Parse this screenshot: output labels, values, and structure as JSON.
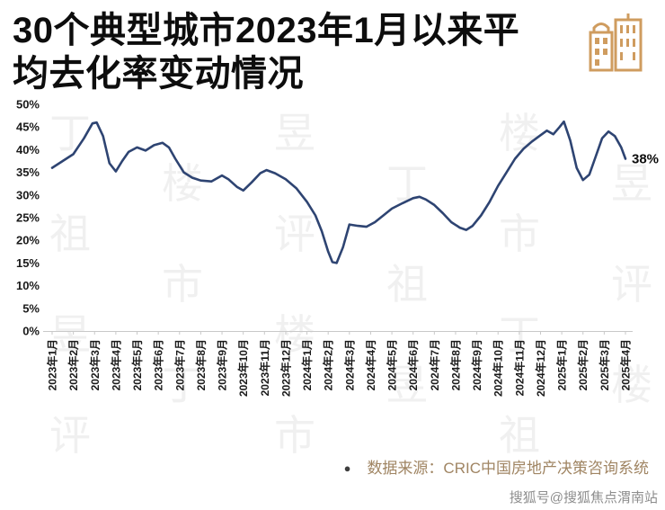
{
  "header": {
    "title_lines": [
      "30个典型城市2023年1月以来平",
      "均去化率变动情况"
    ],
    "icon_color": "#cf9c5f"
  },
  "chart_data": {
    "type": "line",
    "title": "30个典型城市2023年1月以来平均去化率变动情况",
    "ylim": [
      0,
      50
    ],
    "y_ticks": [
      "0%",
      "5%",
      "10%",
      "15%",
      "20%",
      "25%",
      "30%",
      "35%",
      "40%",
      "45%",
      "50%"
    ],
    "x_labels": [
      "2023年1月",
      "2023年2月",
      "2023年3月",
      "2023年4月",
      "2023年5月",
      "2023年6月",
      "2023年7月",
      "2023年8月",
      "2023年9月",
      "2023年10月",
      "2023年11月",
      "2023年12月",
      "2024年1月",
      "2024年2月",
      "2024年3月",
      "2024年4月",
      "2024年5月",
      "2024年6月",
      "2024年7月",
      "2024年8月",
      "2024年9月",
      "2024年10月",
      "2024年11月",
      "2024年12月",
      "2025年1月",
      "2025年2月",
      "2025年3月",
      "2025年4月"
    ],
    "grid": false,
    "legend": "none",
    "axis_color": "#c9c9c9",
    "label_color": "#1a1a1a",
    "series": [
      {
        "color": "#2e4472",
        "points": [
          [
            0,
            36
          ],
          [
            0.5,
            37.5
          ],
          [
            1,
            39
          ],
          [
            1.5,
            42.5
          ],
          [
            1.9,
            45.8
          ],
          [
            2.1,
            46
          ],
          [
            2.4,
            43
          ],
          [
            2.7,
            37
          ],
          [
            3,
            35.2
          ],
          [
            3.3,
            37.5
          ],
          [
            3.6,
            39.5
          ],
          [
            4,
            40.5
          ],
          [
            4.4,
            39.8
          ],
          [
            4.8,
            41
          ],
          [
            5.2,
            41.5
          ],
          [
            5.5,
            40.5
          ],
          [
            5.8,
            38
          ],
          [
            6.2,
            35
          ],
          [
            6.6,
            33.8
          ],
          [
            7,
            33.2
          ],
          [
            7.5,
            33
          ],
          [
            8,
            34.3
          ],
          [
            8.3,
            33.5
          ],
          [
            8.7,
            31.8
          ],
          [
            9,
            31
          ],
          [
            9.4,
            32.8
          ],
          [
            9.8,
            34.8
          ],
          [
            10.1,
            35.5
          ],
          [
            10.5,
            34.8
          ],
          [
            11,
            33.5
          ],
          [
            11.5,
            31.5
          ],
          [
            12,
            28.5
          ],
          [
            12.4,
            25.5
          ],
          [
            12.7,
            22
          ],
          [
            13,
            17.5
          ],
          [
            13.2,
            15.2
          ],
          [
            13.4,
            15
          ],
          [
            13.7,
            18.5
          ],
          [
            14,
            23.5
          ],
          [
            14.4,
            23.2
          ],
          [
            14.8,
            23
          ],
          [
            15.2,
            24
          ],
          [
            15.6,
            25.5
          ],
          [
            16,
            27
          ],
          [
            16.5,
            28.2
          ],
          [
            17,
            29.3
          ],
          [
            17.3,
            29.6
          ],
          [
            17.6,
            29
          ],
          [
            18,
            27.8
          ],
          [
            18.4,
            26
          ],
          [
            18.8,
            24
          ],
          [
            19.2,
            22.8
          ],
          [
            19.5,
            22.3
          ],
          [
            19.8,
            23.2
          ],
          [
            20.2,
            25.5
          ],
          [
            20.6,
            28.5
          ],
          [
            21,
            32
          ],
          [
            21.4,
            35
          ],
          [
            21.8,
            38
          ],
          [
            22.2,
            40.2
          ],
          [
            22.6,
            41.8
          ],
          [
            23,
            43.2
          ],
          [
            23.3,
            44.2
          ],
          [
            23.6,
            43.4
          ],
          [
            23.9,
            45
          ],
          [
            24.1,
            46.2
          ],
          [
            24.4,
            42
          ],
          [
            24.7,
            36
          ],
          [
            25,
            33.3
          ],
          [
            25.3,
            34.5
          ],
          [
            25.6,
            38.5
          ],
          [
            25.9,
            42.5
          ],
          [
            26.2,
            44
          ],
          [
            26.5,
            43
          ],
          [
            26.8,
            40.5
          ],
          [
            27,
            38
          ]
        ]
      }
    ],
    "end_label": "38%"
  },
  "footer": {
    "bullet": "●",
    "source": "数据来源：CRIC中国房地产决策咨询系统",
    "credit": "搜狐号@搜狐焦点渭南站"
  },
  "watermark": {
    "text": "丁祖昱评楼市"
  }
}
